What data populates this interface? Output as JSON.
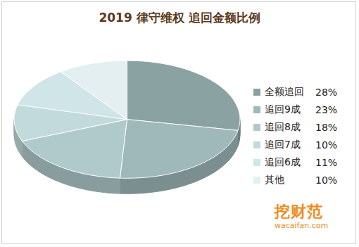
{
  "chart_data": {
    "type": "pie",
    "title": "2019 律守维权 追回金额比例",
    "categories": [
      "全额追回",
      "追回9成",
      "追回8成",
      "追回7成",
      "追回6成",
      "其他"
    ],
    "values": [
      28,
      23,
      18,
      10,
      11,
      10
    ],
    "value_labels": [
      "28%",
      "23%",
      "18%",
      "10%",
      "11%",
      "10%"
    ],
    "colors": [
      "#8ba2a3",
      "#9fb8b9",
      "#b0cacb",
      "#c2dadb",
      "#d0e5e7",
      "#e3eff1"
    ],
    "legend": "right",
    "data_labels": false,
    "annotations": [
      "挖财范",
      "wacaifan.com"
    ]
  }
}
